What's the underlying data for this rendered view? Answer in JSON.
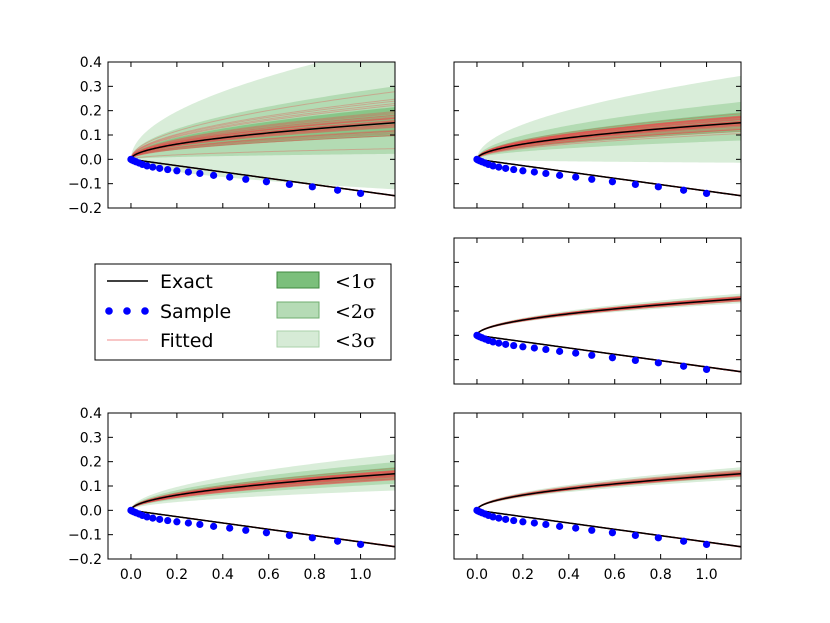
{
  "chart_data": {
    "type": "line",
    "layout": "3x2 grid of panels; middle-left slot holds the legend",
    "legend": {
      "placement": "middle-left",
      "entries": [
        {
          "label": "Exact",
          "kind": "line",
          "color": "#000000"
        },
        {
          "label": "Sample",
          "kind": "markers",
          "color": "#0000ff"
        },
        {
          "label": "Fitted",
          "kind": "line",
          "color": "#f08080"
        },
        {
          "label": "<1σ",
          "kind": "band",
          "color": "#5aaf5a",
          "opacity": 0.8
        },
        {
          "label": "<2σ",
          "kind": "band",
          "color": "#5aaf5a",
          "opacity": 0.45
        },
        {
          "label": "<3σ",
          "kind": "band",
          "color": "#5aaf5a",
          "opacity": 0.25
        }
      ]
    },
    "colors": {
      "exact": "#000000",
      "sample": "#0000ff",
      "fitted": "#e84c4c",
      "band": "#2e9a2e"
    },
    "shared": {
      "xlim": [
        -0.1,
        1.15
      ],
      "ylim": [
        -0.2,
        0.4
      ],
      "xticks": [
        0.0,
        0.2,
        0.4,
        0.6,
        0.8,
        1.0
      ],
      "xtick_labels": [
        "0.0",
        "0.2",
        "0.4",
        "0.6",
        "0.8",
        "1.0"
      ],
      "yticks": [
        0.4,
        0.3,
        0.2,
        0.1,
        0.0,
        -0.1,
        -0.2
      ],
      "ytick_labels": [
        "0.4",
        "0.3",
        "0.2",
        "0.1",
        "0.0",
        "−0.1",
        "−0.2"
      ],
      "exact_upper_curve": "y = 0.14 * x^0.5 for 0 ≤ x ≤ 1.15 (value at x=1.0 ≈ 0.14)",
      "exact_lower_curve": "y = -0.13 * x for 0 ≤ x ≤ 1.15",
      "sample_x": [
        0.0,
        0.005,
        0.012,
        0.022,
        0.035,
        0.05,
        0.07,
        0.095,
        0.125,
        0.16,
        0.2,
        0.25,
        0.3,
        0.36,
        0.43,
        0.5,
        0.59,
        0.69,
        0.79,
        0.9,
        1.0
      ],
      "sample_y": [
        0.0,
        -0.003,
        -0.006,
        -0.01,
        -0.015,
        -0.021,
        -0.027,
        -0.032,
        -0.037,
        -0.042,
        -0.047,
        -0.052,
        -0.058,
        -0.066,
        -0.073,
        -0.082,
        -0.092,
        -0.103,
        -0.113,
        -0.127,
        -0.14
      ]
    },
    "panels": [
      {
        "id": "top-left",
        "row": 0,
        "col": 0,
        "show_yticklabels": true,
        "show_xticklabels": false,
        "band_spread": [
          0.06,
          0.14,
          0.3
        ],
        "fitted_spread": 0.16,
        "fitted_count": 40
      },
      {
        "id": "top-right",
        "row": 0,
        "col": 1,
        "show_yticklabels": false,
        "show_xticklabels": false,
        "band_spread": [
          0.04,
          0.08,
          0.18
        ],
        "fitted_spread": 0.07,
        "fitted_count": 40
      },
      {
        "id": "middle-right",
        "row": 1,
        "col": 1,
        "show_yticklabels": false,
        "show_xticklabels": false,
        "band_spread": [
          0.005,
          0.012,
          0.02
        ],
        "fitted_spread": 0.012,
        "fitted_count": 30
      },
      {
        "id": "bottom-left",
        "row": 2,
        "col": 0,
        "show_yticklabels": true,
        "show_xticklabels": true,
        "band_spread": [
          0.025,
          0.045,
          0.075
        ],
        "fitted_spread": 0.03,
        "fitted_count": 35
      },
      {
        "id": "bottom-right",
        "row": 2,
        "col": 1,
        "show_yticklabels": false,
        "show_xticklabels": true,
        "band_spread": [
          0.008,
          0.015,
          0.025
        ],
        "fitted_spread": 0.015,
        "fitted_count": 30
      }
    ]
  }
}
